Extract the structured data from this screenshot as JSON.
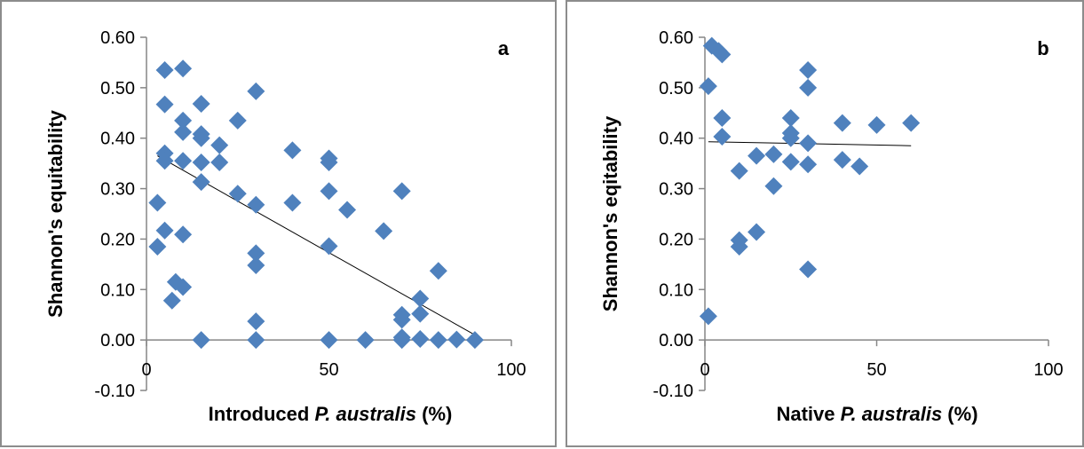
{
  "chart_data": [
    {
      "type": "scatter",
      "panel_label": "a",
      "xlabel": {
        "prefix": "Introduced ",
        "italic": "P. australis",
        "suffix": " (%)"
      },
      "ylabel": "Shannon's equitability",
      "xlim": [
        0,
        100
      ],
      "ylim": [
        -0.1,
        0.6
      ],
      "xticks": [
        0,
        50,
        100
      ],
      "yticks": [
        -0.1,
        0.0,
        0.1,
        0.2,
        0.3,
        0.4,
        0.5,
        0.6
      ],
      "tick_labels_y": [
        "-0.10",
        "0.00",
        "0.10",
        "0.20",
        "0.30",
        "0.40",
        "0.50",
        "0.60"
      ],
      "tick_labels_x": [
        "0",
        "50",
        "100"
      ],
      "grid": false,
      "marker_color": "#4f81bd",
      "points": [
        [
          5,
          0.535
        ],
        [
          10,
          0.538
        ],
        [
          5,
          0.467
        ],
        [
          15,
          0.468
        ],
        [
          30,
          0.493
        ],
        [
          10,
          0.435
        ],
        [
          25,
          0.435
        ],
        [
          10,
          0.412
        ],
        [
          15,
          0.408
        ],
        [
          15,
          0.4
        ],
        [
          20,
          0.386
        ],
        [
          5,
          0.37
        ],
        [
          5,
          0.355
        ],
        [
          10,
          0.355
        ],
        [
          15,
          0.352
        ],
        [
          20,
          0.352
        ],
        [
          40,
          0.376
        ],
        [
          50,
          0.36
        ],
        [
          50,
          0.352
        ],
        [
          15,
          0.313
        ],
        [
          25,
          0.29
        ],
        [
          50,
          0.295
        ],
        [
          70,
          0.295
        ],
        [
          3,
          0.272
        ],
        [
          30,
          0.268
        ],
        [
          40,
          0.272
        ],
        [
          55,
          0.258
        ],
        [
          5,
          0.217
        ],
        [
          10,
          0.209
        ],
        [
          65,
          0.216
        ],
        [
          3,
          0.185
        ],
        [
          50,
          0.186
        ],
        [
          30,
          0.172
        ],
        [
          30,
          0.148
        ],
        [
          80,
          0.137
        ],
        [
          8,
          0.115
        ],
        [
          10,
          0.105
        ],
        [
          7,
          0.078
        ],
        [
          75,
          0.082
        ],
        [
          30,
          0.037
        ],
        [
          70,
          0.05
        ],
        [
          70,
          0.04
        ],
        [
          75,
          0.052
        ],
        [
          15,
          0.0
        ],
        [
          30,
          0.0
        ],
        [
          50,
          0.0
        ],
        [
          60,
          0.0
        ],
        [
          70,
          0.005
        ],
        [
          70,
          0.0
        ],
        [
          75,
          0.002
        ],
        [
          80,
          0.0
        ],
        [
          85,
          0.001
        ],
        [
          90,
          0.0
        ]
      ],
      "trendline": [
        [
          3,
          0.365
        ],
        [
          90,
          0.01
        ]
      ]
    },
    {
      "type": "scatter",
      "panel_label": "b",
      "xlabel": {
        "prefix": "Native ",
        "italic": "P. australis",
        "suffix": " (%)"
      },
      "ylabel": "Shannon's eqitability",
      "xlim": [
        0,
        100
      ],
      "ylim": [
        -0.1,
        0.6
      ],
      "xticks": [
        0,
        50,
        100
      ],
      "yticks": [
        -0.1,
        0.0,
        0.1,
        0.2,
        0.3,
        0.4,
        0.5,
        0.6
      ],
      "tick_labels_y": [
        "-0.10",
        "0.00",
        "0.10",
        "0.20",
        "0.30",
        "0.40",
        "0.50",
        "0.60"
      ],
      "tick_labels_x": [
        "0",
        "50",
        "100"
      ],
      "grid": false,
      "marker_color": "#4f81bd",
      "points": [
        [
          2,
          0.583
        ],
        [
          4,
          0.573
        ],
        [
          5,
          0.566
        ],
        [
          1,
          0.503
        ],
        [
          30,
          0.535
        ],
        [
          30,
          0.5
        ],
        [
          5,
          0.44
        ],
        [
          25,
          0.44
        ],
        [
          40,
          0.43
        ],
        [
          50,
          0.426
        ],
        [
          60,
          0.43
        ],
        [
          25,
          0.41
        ],
        [
          5,
          0.403
        ],
        [
          25,
          0.4
        ],
        [
          30,
          0.39
        ],
        [
          15,
          0.365
        ],
        [
          20,
          0.368
        ],
        [
          25,
          0.353
        ],
        [
          30,
          0.348
        ],
        [
          40,
          0.357
        ],
        [
          45,
          0.344
        ],
        [
          10,
          0.335
        ],
        [
          20,
          0.305
        ],
        [
          15,
          0.214
        ],
        [
          10,
          0.198
        ],
        [
          10,
          0.185
        ],
        [
          30,
          0.14
        ],
        [
          1,
          0.047
        ]
      ],
      "trendline": [
        [
          1,
          0.393
        ],
        [
          60,
          0.385
        ]
      ]
    }
  ]
}
